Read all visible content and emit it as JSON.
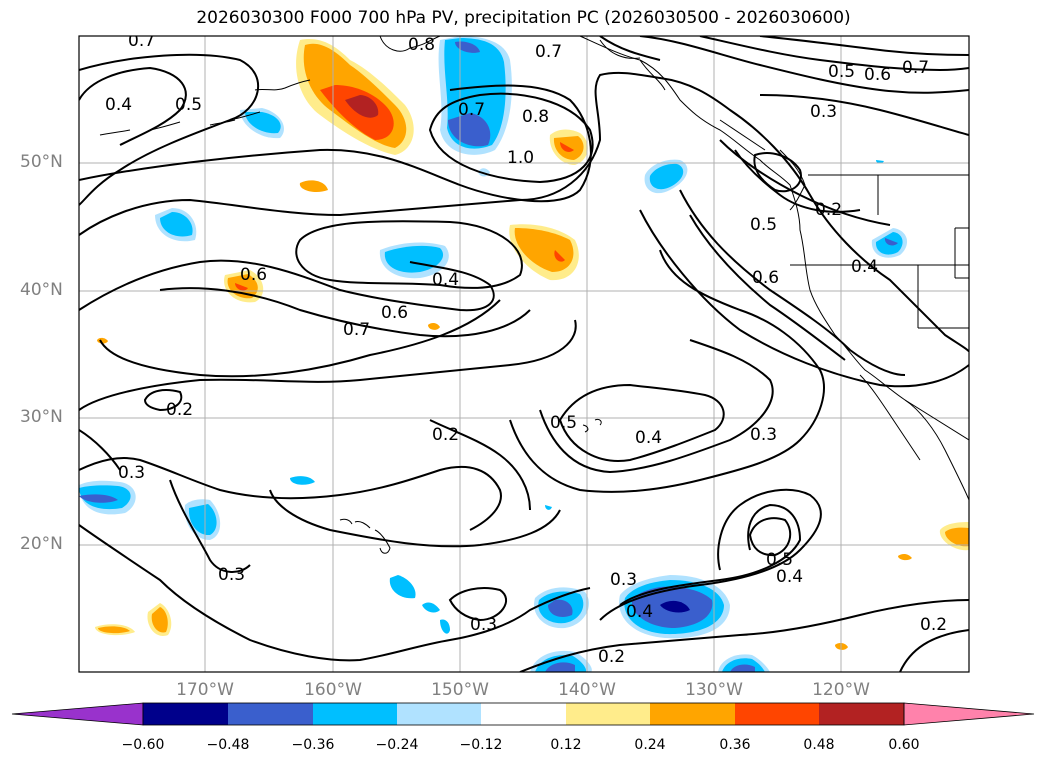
{
  "title": "2026030300 F000 700 hPa PV, precipitation PC (2026030500 - 2026030600)",
  "lat_labels": [
    "50°N",
    "40°N",
    "30°N",
    "20°N"
  ],
  "lon_labels": [
    "170°W",
    "160°W",
    "150°W",
    "140°W",
    "130°W",
    "120°W"
  ],
  "colorbar": {
    "tick_labels": [
      "−0.60",
      "−0.48",
      "−0.36",
      "−0.24",
      "−0.12",
      "0.12",
      "0.24",
      "0.36",
      "0.48",
      "0.60"
    ],
    "colors": [
      "#9932CC",
      "#00008B",
      "#3A5FCD",
      "#00BFFF",
      "#B0E2FF",
      "#FFFFFF",
      "#FFEC8B",
      "#FFA500",
      "#FF4500",
      "#B22222",
      "#FF82AB"
    ]
  },
  "contour_labels": [
    "0.7",
    "0.8",
    "0.7",
    "0.5",
    "0.6",
    "0.7",
    "0.4",
    "0.5",
    "0.7",
    "0.8",
    "1.0",
    "0.3",
    "0.2",
    "0.5",
    "0.6",
    "0.4",
    "0.6",
    "0.4",
    "0.6",
    "0.7",
    "0.2",
    "0.3",
    "0.2",
    "0.5",
    "0.4",
    "0.3",
    "0.3",
    "0.3",
    "0.4",
    "0.5",
    "0.4",
    "0.3",
    "0.2",
    "0.2"
  ]
}
